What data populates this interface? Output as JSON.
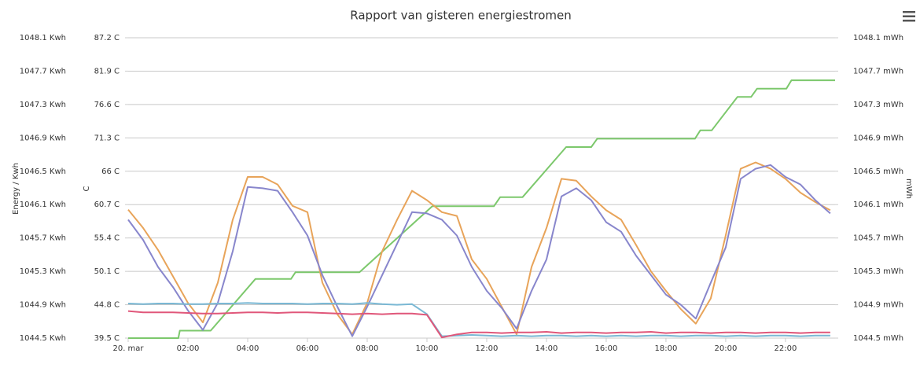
{
  "chart_data": {
    "type": "line",
    "title": "Rapport van gisteren energiestromen",
    "ylabel": "Energy / Kwh",
    "y2label": "C",
    "y3label": "mWh",
    "xlim": [
      0,
      23.66
    ],
    "xticks": [
      {
        "value": 0,
        "label": "20. mar"
      },
      {
        "value": 2,
        "label": "02:00"
      },
      {
        "value": 4,
        "label": "04:00"
      },
      {
        "value": 6,
        "label": "06:00"
      },
      {
        "value": 8,
        "label": "08:00"
      },
      {
        "value": 10,
        "label": "10:00"
      },
      {
        "value": 12,
        "label": "12:00"
      },
      {
        "value": 14,
        "label": "14:00"
      },
      {
        "value": 16,
        "label": "16:00"
      },
      {
        "value": 18,
        "label": "18:00"
      },
      {
        "value": 20,
        "label": "20:00"
      },
      {
        "value": 22,
        "label": "22:00"
      }
    ],
    "ylim": [
      1044.5,
      1048.1
    ],
    "yticks": [
      {
        "value": 1044.5,
        "label": "1044.5 Kwh"
      },
      {
        "value": 1044.9,
        "label": "1044.9 Kwh"
      },
      {
        "value": 1045.3,
        "label": "1045.3 Kwh"
      },
      {
        "value": 1045.7,
        "label": "1045.7 Kwh"
      },
      {
        "value": 1046.1,
        "label": "1046.1 Kwh"
      },
      {
        "value": 1046.5,
        "label": "1046.5 Kwh"
      },
      {
        "value": 1046.9,
        "label": "1046.9 Kwh"
      },
      {
        "value": 1047.3,
        "label": "1047.3 Kwh"
      },
      {
        "value": 1047.7,
        "label": "1047.7 Kwh"
      },
      {
        "value": 1048.1,
        "label": "1048.1 Kwh"
      }
    ],
    "y2lim": [
      39.5,
      87.2
    ],
    "y2ticks": [
      {
        "value": 39.5,
        "label": "39.5 C"
      },
      {
        "value": 44.8,
        "label": "44.8 C"
      },
      {
        "value": 50.1,
        "label": "50.1 C"
      },
      {
        "value": 55.4,
        "label": "55.4 C"
      },
      {
        "value": 60.7,
        "label": "60.7 C"
      },
      {
        "value": 66,
        "label": "66 C"
      },
      {
        "value": 71.3,
        "label": "71.3 C"
      },
      {
        "value": 76.6,
        "label": "76.6 C"
      },
      {
        "value": 81.9,
        "label": "81.9 C"
      },
      {
        "value": 87.2,
        "label": "87.2 C"
      }
    ],
    "y3lim": [
      1044.5,
      1048.1
    ],
    "y3ticks": [
      {
        "value": 1044.5,
        "label": "1044.5 mWh"
      },
      {
        "value": 1044.9,
        "label": "1044.9 mWh"
      },
      {
        "value": 1045.3,
        "label": "1045.3 mWh"
      },
      {
        "value": 1045.7,
        "label": "1045.7 mWh"
      },
      {
        "value": 1046.1,
        "label": "1046.1 mWh"
      },
      {
        "value": 1046.5,
        "label": "1046.5 mWh"
      },
      {
        "value": 1046.9,
        "label": "1046.9 mWh"
      },
      {
        "value": 1047.3,
        "label": "1047.3 mWh"
      },
      {
        "value": 1047.7,
        "label": "1047.7 mWh"
      },
      {
        "value": 1048.1,
        "label": "1048.1 mWh"
      }
    ],
    "grid": true,
    "x": [
      0,
      0.5,
      1,
      1.5,
      2,
      2.5,
      3,
      3.5,
      4,
      4.5,
      5,
      5.5,
      6,
      6.5,
      7,
      7.5,
      8,
      8.5,
      9,
      9.5,
      10,
      10.5,
      11,
      11.5,
      12,
      12.5,
      13,
      13.5,
      14,
      14.5,
      15,
      15.5,
      16,
      16.5,
      17,
      17.5,
      18,
      18.5,
      19,
      19.5,
      20,
      20.5,
      21,
      21.5,
      22,
      22.5,
      23,
      23.5
    ],
    "series": [
      {
        "color": "#7cc86c",
        "axis": "y",
        "x": [
          0,
          1.68,
          1.73,
          2.76,
          4.26,
          5.45,
          5.6,
          7.74,
          10.18,
          12.24,
          12.45,
          13.2,
          14.66,
          15.5,
          15.7,
          18.97,
          19.15,
          19.53,
          20.39,
          20.85,
          21.05,
          22.03,
          22.2,
          23.66
        ],
        "values": [
          1044.5,
          1044.5,
          1044.59,
          1044.59,
          1045.21,
          1045.21,
          1045.29,
          1045.29,
          1046.08,
          1046.08,
          1046.19,
          1046.19,
          1046.79,
          1046.79,
          1046.89,
          1046.89,
          1046.99,
          1046.99,
          1047.39,
          1047.39,
          1047.49,
          1047.49,
          1047.59,
          1047.59
        ]
      },
      {
        "color": "#e8a45a",
        "axis": "y2",
        "values": [
          59.9,
          57.0,
          53.5,
          49.3,
          45.1,
          42.0,
          48.3,
          58.3,
          65.1,
          65.1,
          63.9,
          60.5,
          59.5,
          48.3,
          43.3,
          40.1,
          45.1,
          53.3,
          58.3,
          62.9,
          61.4,
          59.5,
          58.9,
          52.0,
          48.9,
          44.5,
          40.1,
          50.8,
          57.0,
          64.8,
          64.5,
          62.0,
          59.8,
          58.3,
          54.3,
          50.1,
          47.0,
          44.1,
          41.8,
          45.8,
          55.8,
          66.4,
          67.4,
          66.4,
          64.8,
          62.6,
          61.1,
          59.8
        ]
      },
      {
        "color": "#8886cc",
        "axis": "y2",
        "values": [
          58.3,
          55.1,
          50.8,
          47.6,
          43.9,
          40.8,
          45.1,
          53.3,
          63.5,
          63.3,
          62.9,
          59.5,
          55.8,
          49.5,
          44.5,
          39.8,
          44.5,
          49.5,
          54.5,
          59.5,
          59.3,
          58.3,
          55.8,
          50.8,
          47.0,
          44.3,
          41.0,
          47.0,
          52.0,
          62.0,
          63.3,
          61.4,
          57.9,
          56.4,
          52.6,
          49.5,
          46.4,
          44.8,
          42.6,
          48.3,
          53.9,
          64.8,
          66.4,
          67.0,
          65.1,
          63.9,
          61.4,
          59.3
        ]
      },
      {
        "color": "#7ab8d4",
        "axis": "y2",
        "values": [
          45.0,
          44.9,
          45.0,
          45.0,
          44.9,
          44.9,
          45.0,
          45.0,
          45.1,
          45.0,
          45.0,
          45.0,
          44.9,
          45.0,
          45.0,
          44.9,
          45.1,
          44.9,
          44.8,
          44.9,
          43.3,
          39.8,
          39.9,
          40.0,
          39.9,
          39.8,
          39.9,
          39.8,
          39.9,
          39.9,
          39.8,
          39.9,
          39.8,
          39.9,
          39.8,
          39.9,
          39.9,
          39.8,
          39.9,
          39.9,
          39.8,
          39.9,
          39.8,
          39.9,
          39.9,
          39.8,
          39.9,
          39.9
        ]
      },
      {
        "color": "#e0577a",
        "axis": "y2",
        "values": [
          43.8,
          43.6,
          43.6,
          43.6,
          43.5,
          43.4,
          43.4,
          43.5,
          43.6,
          43.6,
          43.5,
          43.6,
          43.6,
          43.5,
          43.4,
          43.3,
          43.4,
          43.3,
          43.4,
          43.4,
          43.2,
          39.6,
          40.1,
          40.4,
          40.4,
          40.3,
          40.4,
          40.4,
          40.5,
          40.3,
          40.4,
          40.4,
          40.3,
          40.4,
          40.4,
          40.5,
          40.3,
          40.4,
          40.4,
          40.3,
          40.4,
          40.4,
          40.3,
          40.4,
          40.4,
          40.3,
          40.4,
          40.4
        ]
      }
    ]
  }
}
